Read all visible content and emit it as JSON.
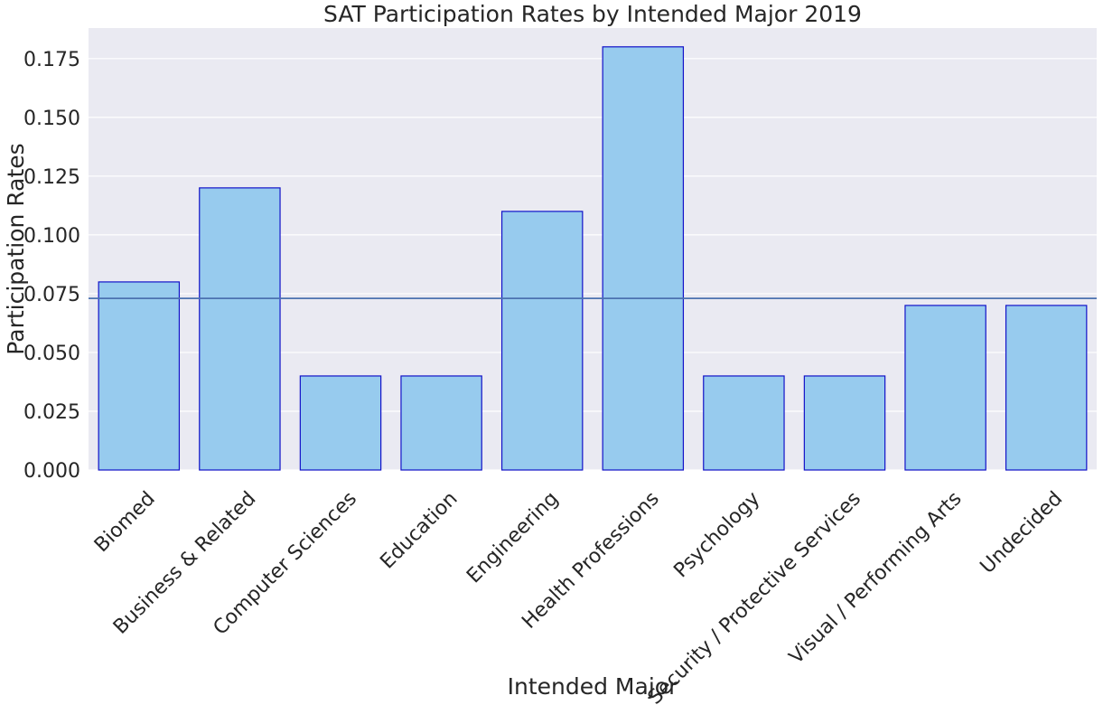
{
  "chart_data": {
    "type": "bar",
    "title": "SAT Participation Rates by Intended Major 2019",
    "xlabel": "Intended Major",
    "ylabel": "Participation Rates",
    "categories": [
      "Biomed",
      "Business & Related",
      "Computer Sciences",
      "Education",
      "Engineering",
      "Health Professions",
      "Psychology",
      "Security / Protective Services",
      "Visual / Performing Arts",
      "Undecided"
    ],
    "values": [
      0.08,
      0.12,
      0.04,
      0.04,
      0.11,
      0.18,
      0.04,
      0.04,
      0.07,
      0.07
    ],
    "reference_line": 0.073,
    "ylim": [
      0,
      0.188
    ],
    "yticks": [
      "0.000",
      "0.025",
      "0.050",
      "0.075",
      "0.100",
      "0.125",
      "0.150",
      "0.175"
    ],
    "grid": true,
    "colors": {
      "background": "#eaeaf2",
      "grid": "#ffffff",
      "bar_fill": "#97cbee",
      "bar_edge": "#1212c8",
      "reference_line": "#4c72b0"
    }
  }
}
